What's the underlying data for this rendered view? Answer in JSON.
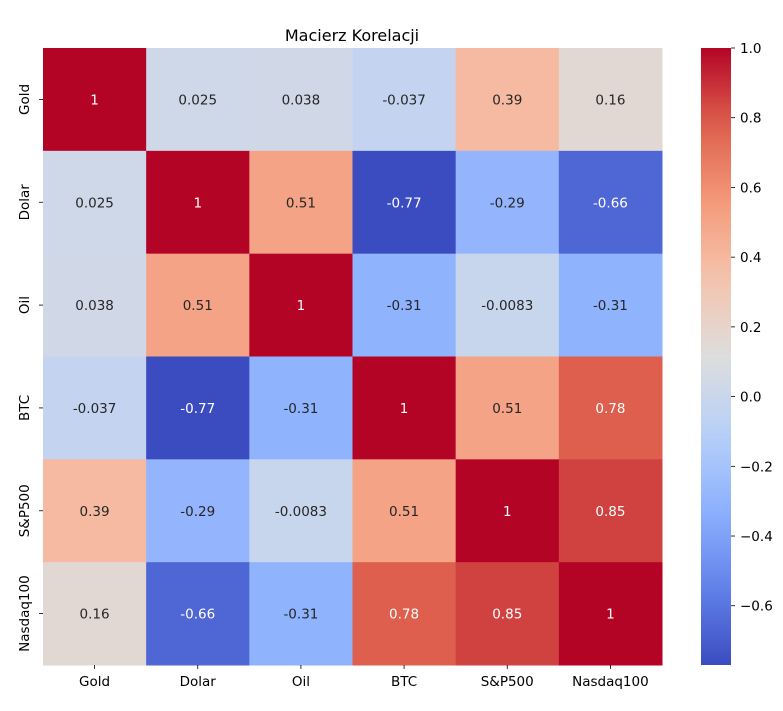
{
  "chart_data": {
    "type": "heatmap",
    "title": "Macierz Korelacji",
    "x_labels": [
      "Gold",
      "Dolar",
      "Oil",
      "BTC",
      "S&P500",
      "Nasdaq100"
    ],
    "y_labels": [
      "Gold",
      "Dolar",
      "Oil",
      "BTC",
      "S&P500",
      "Nasdaq100"
    ],
    "values": [
      [
        1,
        0.025,
        0.038,
        -0.037,
        0.39,
        0.16
      ],
      [
        0.025,
        1,
        0.51,
        -0.77,
        -0.29,
        -0.66
      ],
      [
        0.038,
        0.51,
        1,
        -0.31,
        -0.0083,
        -0.31
      ],
      [
        -0.037,
        -0.77,
        -0.31,
        1,
        0.51,
        0.78
      ],
      [
        0.39,
        -0.29,
        -0.0083,
        0.51,
        1,
        0.85
      ],
      [
        0.16,
        -0.66,
        -0.31,
        0.78,
        0.85,
        1
      ]
    ],
    "cell_labels": [
      [
        "1",
        "0.025",
        "0.038",
        "-0.037",
        "0.39",
        "0.16"
      ],
      [
        "0.025",
        "1",
        "0.51",
        "-0.77",
        "-0.29",
        "-0.66"
      ],
      [
        "0.038",
        "0.51",
        "1",
        "-0.31",
        "-0.0083",
        "-0.31"
      ],
      [
        "-0.037",
        "-0.77",
        "-0.31",
        "1",
        "0.51",
        "0.78"
      ],
      [
        "0.39",
        "-0.29",
        "-0.0083",
        "0.51",
        "1",
        "0.85"
      ],
      [
        "0.16",
        "-0.66",
        "-0.31",
        "0.78",
        "0.85",
        "1"
      ]
    ],
    "colormap": "coolwarm",
    "color_range": [
      -0.77,
      1.0
    ],
    "colorbar_ticks": [
      "1.0",
      "0.8",
      "0.6",
      "0.4",
      "0.2",
      "0.0",
      "−0.2",
      "−0.4",
      "−0.6"
    ],
    "grid": false
  }
}
